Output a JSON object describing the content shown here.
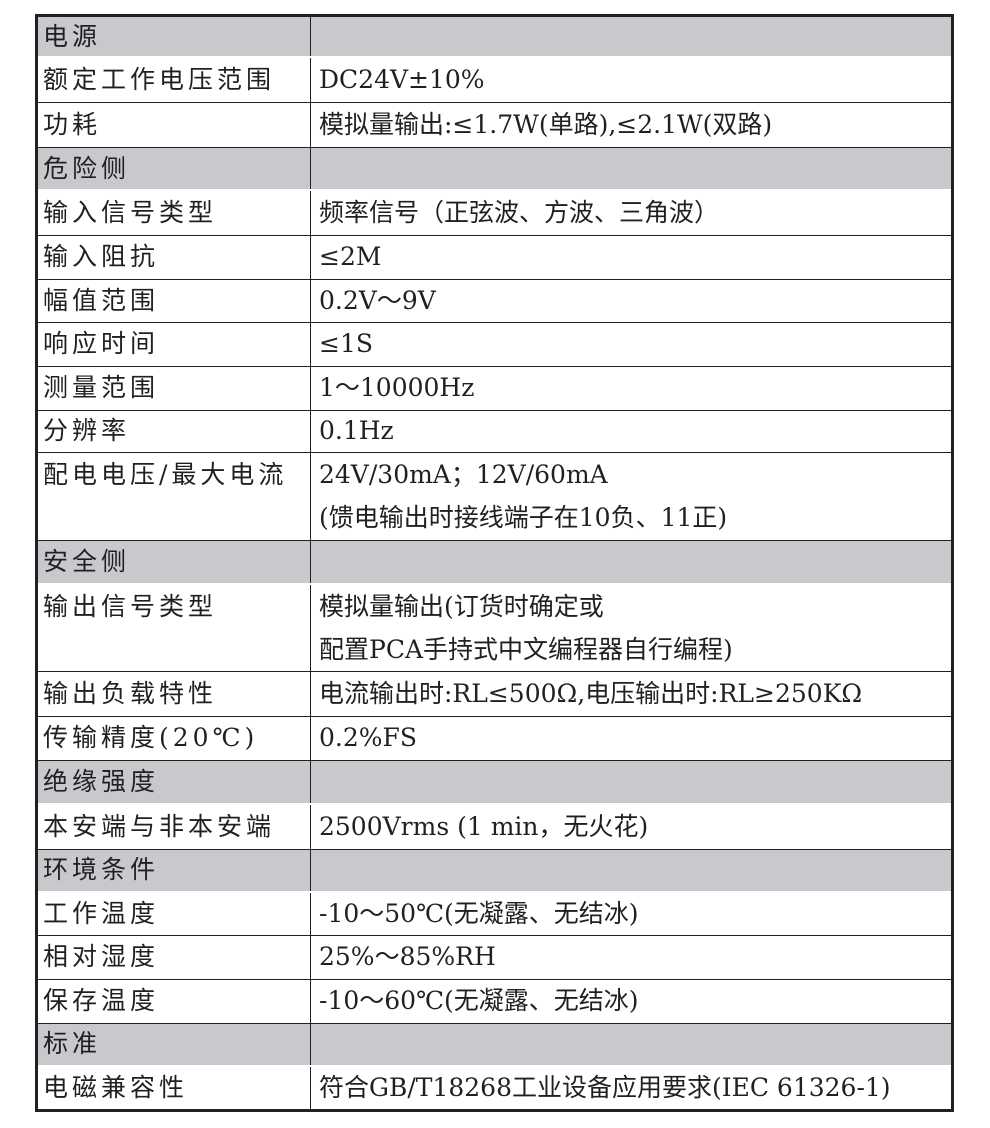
{
  "rows": [
    {
      "type": "section",
      "label": "电源",
      "value": ""
    },
    {
      "type": "row",
      "label": "额定工作电压范围",
      "value": [
        "DC24V±10%"
      ]
    },
    {
      "type": "row",
      "label": "功耗",
      "value": [
        "模拟量输出:≤1.7W(单路),≤2.1W(双路)"
      ]
    },
    {
      "type": "section",
      "label": "危险侧",
      "value": ""
    },
    {
      "type": "row",
      "label": "输入信号类型",
      "value": [
        "频率信号（正弦波、方波、三角波）"
      ]
    },
    {
      "type": "row",
      "label": "输入阻抗",
      "value": [
        "≤2M"
      ]
    },
    {
      "type": "row",
      "label": "幅值范围",
      "value": [
        "0.2V～9V"
      ]
    },
    {
      "type": "row",
      "label": "响应时间",
      "value": [
        "≤1S"
      ]
    },
    {
      "type": "row",
      "label": "测量范围",
      "value": [
        "1～10000Hz"
      ]
    },
    {
      "type": "row",
      "label": "分辨率",
      "value": [
        "0.1Hz"
      ]
    },
    {
      "type": "row",
      "label": "配电电压/最大电流",
      "value": [
        "24V/30mA；12V/60mA",
        "(馈电输出时接线端子在10负、11正)"
      ]
    },
    {
      "type": "section",
      "label": "安全侧",
      "value": ""
    },
    {
      "type": "row",
      "label": "输出信号类型",
      "value": [
        "模拟量输出(订货时确定或",
        "配置PCA手持式中文编程器自行编程)"
      ]
    },
    {
      "type": "row",
      "label": "输出负载特性",
      "value": [
        "电流输出时:RL≤500Ω,电压输出时:RL≥250KΩ"
      ]
    },
    {
      "type": "row",
      "label": "传输精度(20℃)",
      "value": [
        "0.2%FS"
      ]
    },
    {
      "type": "section",
      "label": "绝缘强度",
      "value": ""
    },
    {
      "type": "row",
      "label": "本安端与非本安端",
      "value": [
        "2500Vrms (1 min，无火花)"
      ]
    },
    {
      "type": "section",
      "label": "环境条件",
      "value": ""
    },
    {
      "type": "row",
      "label": "工作温度",
      "value": [
        "-10～50℃(无凝露、无结冰)"
      ]
    },
    {
      "type": "row",
      "label": "相对湿度",
      "value": [
        "25%～85%RH"
      ]
    },
    {
      "type": "row",
      "label": "保存温度",
      "value": [
        "-10～60℃(无凝露、无结冰)"
      ]
    },
    {
      "type": "section",
      "label": "标准",
      "value": ""
    },
    {
      "type": "row",
      "label": "电磁兼容性",
      "value": [
        "符合GB/T18268工业设备应用要求(IEC 61326-1)"
      ]
    }
  ]
}
